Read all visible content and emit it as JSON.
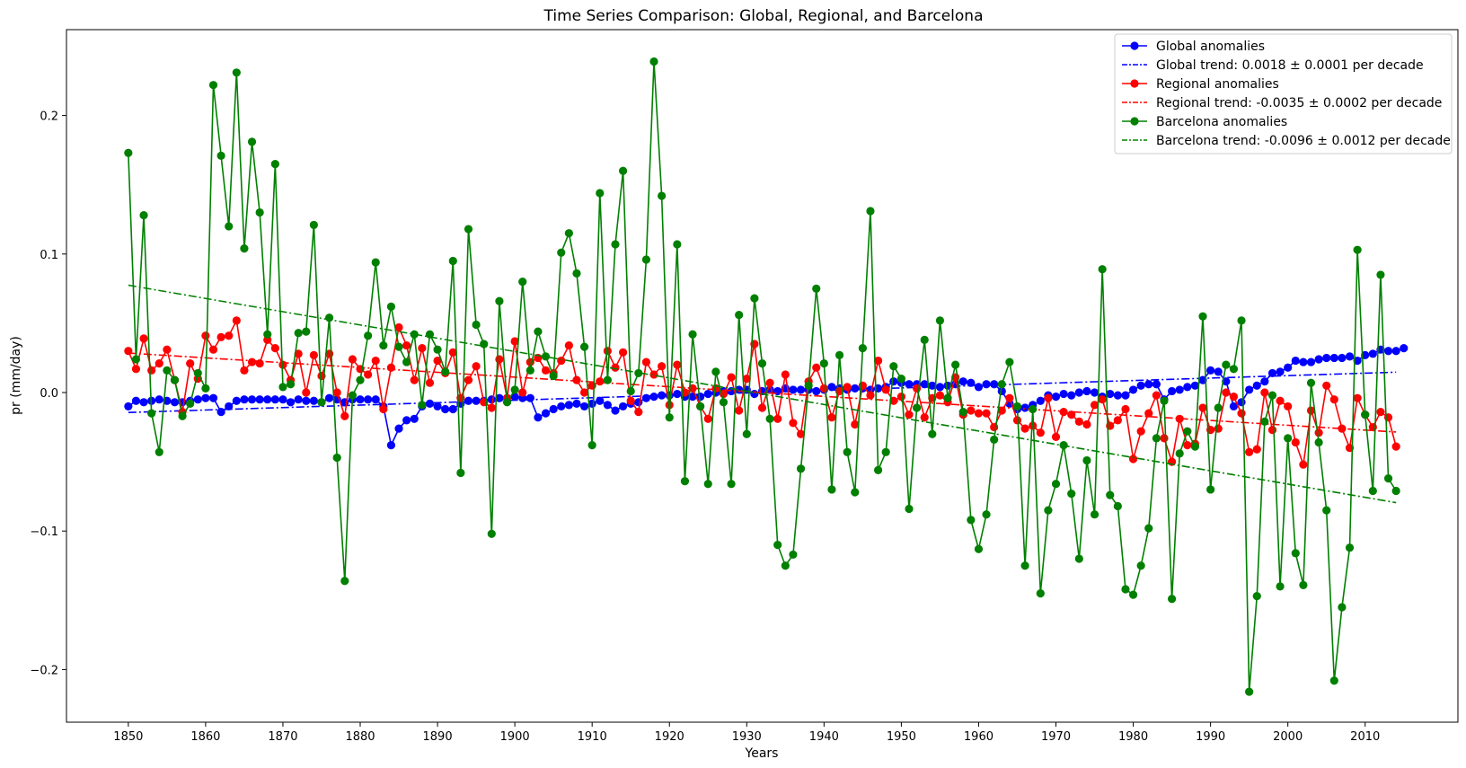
{
  "chart_data": {
    "type": "line",
    "title": "Time Series Comparison: Global, Regional, and Barcelona",
    "xlabel": "Years",
    "ylabel": "pr (mm/day)",
    "xlim": [
      1842,
      2022
    ],
    "ylim": [
      -0.238,
      0.262
    ],
    "xticks": [
      1850,
      1860,
      1870,
      1880,
      1890,
      1900,
      1910,
      1920,
      1930,
      1940,
      1950,
      1960,
      1970,
      1980,
      1990,
      2000,
      2010
    ],
    "yticks": [
      -0.2,
      -0.1,
      0.0,
      0.1,
      0.2
    ],
    "ytick_labels": [
      "−0.2",
      "−0.1",
      "0.0",
      "0.1",
      "0.2"
    ],
    "grid": false,
    "legend_position": "top-right",
    "x_start": 1850,
    "x_end": 2014,
    "series": [
      {
        "name": "Global anomalies",
        "color": "#0000ff",
        "kind": "anomalies",
        "values": [
          -0.01,
          -0.006,
          -0.007,
          -0.006,
          -0.005,
          -0.006,
          -0.007,
          -0.007,
          -0.006,
          -0.005,
          -0.004,
          -0.004,
          -0.014,
          -0.01,
          -0.006,
          -0.005,
          -0.005,
          -0.005,
          -0.005,
          -0.005,
          -0.005,
          -0.007,
          -0.005,
          -0.006,
          -0.006,
          -0.007,
          -0.004,
          -0.005,
          -0.007,
          -0.005,
          -0.005,
          -0.005,
          -0.005,
          -0.01,
          -0.038,
          -0.026,
          -0.02,
          -0.019,
          -0.01,
          -0.008,
          -0.01,
          -0.012,
          -0.012,
          -0.008,
          -0.006,
          -0.006,
          -0.006,
          -0.005,
          -0.004,
          -0.004,
          -0.003,
          -0.004,
          -0.004,
          -0.018,
          -0.015,
          -0.012,
          -0.01,
          -0.009,
          -0.008,
          -0.01,
          -0.008,
          -0.006,
          -0.009,
          -0.013,
          -0.01,
          -0.008,
          -0.007,
          -0.004,
          -0.003,
          -0.002,
          -0.002,
          -0.001,
          -0.003,
          -0.003,
          -0.003,
          -0.001,
          0.0,
          0.001,
          0.001,
          0.002,
          0.002,
          -0.001,
          0.001,
          0.002,
          0.001,
          0.003,
          0.002,
          0.002,
          0.002,
          0.001,
          0.002,
          0.004,
          0.003,
          0.002,
          0.003,
          0.003,
          0.002,
          0.003,
          0.004,
          0.008,
          0.007,
          0.006,
          0.006,
          0.006,
          0.005,
          0.004,
          0.005,
          0.006,
          0.008,
          0.007,
          0.004,
          0.006,
          0.006,
          0.001,
          -0.008,
          -0.012,
          -0.011,
          -0.009,
          -0.006,
          -0.002,
          -0.003,
          -0.001,
          -0.002,
          0.0,
          0.001,
          0.0,
          -0.003,
          -0.001,
          -0.002,
          -0.002,
          0.002,
          0.005,
          0.006,
          0.006,
          -0.005,
          0.001,
          0.002,
          0.004,
          0.005,
          0.009,
          0.016,
          0.015,
          0.008,
          -0.01,
          -0.007,
          0.002,
          0.005,
          0.008,
          0.014,
          0.015,
          0.018,
          0.023,
          0.022,
          0.022,
          0.024,
          0.025,
          0.025,
          0.025,
          0.026,
          0.023,
          0.027,
          0.028,
          0.031,
          0.03,
          0.03,
          0.032
        ]
      },
      {
        "name": "Global trend: 0.0018 ± 0.0001 per decade",
        "color": "#0000ff",
        "kind": "trend",
        "start": -0.0144,
        "end": 0.0147
      },
      {
        "name": "Regional anomalies",
        "color": "#ff0000",
        "kind": "anomalies",
        "values": [
          0.03,
          0.017,
          0.039,
          0.016,
          0.021,
          0.031,
          0.009,
          -0.014,
          0.021,
          0.01,
          0.041,
          0.031,
          0.04,
          0.041,
          0.052,
          0.016,
          0.022,
          0.021,
          0.038,
          0.032,
          0.02,
          0.009,
          0.028,
          0.0,
          0.027,
          0.012,
          0.028,
          0.0,
          -0.017,
          0.024,
          0.017,
          0.013,
          0.023,
          -0.012,
          0.018,
          0.047,
          0.034,
          0.009,
          0.032,
          0.007,
          0.023,
          0.014,
          0.029,
          -0.004,
          0.009,
          0.019,
          -0.007,
          -0.011,
          0.024,
          -0.004,
          0.037,
          0.0,
          0.022,
          0.025,
          0.016,
          0.014,
          0.023,
          0.034,
          0.009,
          0.0,
          0.005,
          0.008,
          0.03,
          0.018,
          0.029,
          -0.006,
          -0.014,
          0.022,
          0.013,
          0.019,
          -0.009,
          0.02,
          0.0,
          0.003,
          -0.01,
          -0.019,
          0.003,
          -0.001,
          0.011,
          -0.013,
          0.01,
          0.035,
          -0.011,
          0.007,
          -0.019,
          0.013,
          -0.022,
          -0.03,
          0.008,
          0.018,
          0.003,
          -0.018,
          0.001,
          0.004,
          -0.023,
          0.005,
          -0.002,
          0.023,
          0.002,
          -0.006,
          -0.003,
          -0.016,
          0.003,
          -0.018,
          -0.004,
          -0.002,
          -0.007,
          0.011,
          -0.016,
          -0.013,
          -0.015,
          -0.015,
          -0.025,
          -0.013,
          -0.004,
          -0.02,
          -0.026,
          -0.024,
          -0.029,
          -0.004,
          -0.032,
          -0.014,
          -0.016,
          -0.021,
          -0.023,
          -0.009,
          -0.005,
          -0.024,
          -0.02,
          -0.012,
          -0.048,
          -0.028,
          -0.015,
          -0.002,
          -0.033,
          -0.05,
          -0.019,
          -0.038,
          -0.037,
          -0.011,
          -0.027,
          -0.026,
          0.0,
          -0.003,
          -0.015,
          -0.043,
          -0.041,
          0.0,
          -0.027,
          -0.006,
          -0.01,
          -0.036,
          -0.052,
          -0.013,
          -0.029,
          0.005,
          -0.005,
          -0.026,
          -0.04,
          -0.004,
          -0.016,
          -0.025,
          -0.014,
          -0.018,
          -0.039
        ]
      },
      {
        "name": "Regional trend: -0.0035 ± 0.0002 per decade",
        "color": "#ff0000",
        "kind": "trend",
        "start": 0.0285,
        "end": -0.0285
      },
      {
        "name": "Barcelona anomalies",
        "color": "#008000",
        "kind": "anomalies",
        "values": [
          0.173,
          0.024,
          0.128,
          -0.015,
          -0.043,
          0.016,
          0.009,
          -0.017,
          -0.008,
          0.014,
          0.003,
          0.222,
          0.171,
          0.12,
          0.231,
          0.104,
          0.181,
          0.13,
          0.042,
          0.165,
          0.004,
          0.006,
          0.043,
          0.044,
          0.121,
          -0.007,
          0.054,
          -0.047,
          -0.136,
          -0.002,
          0.009,
          0.041,
          0.094,
          0.034,
          0.062,
          0.033,
          0.022,
          0.042,
          -0.009,
          0.042,
          0.031,
          0.015,
          0.095,
          -0.058,
          0.118,
          0.049,
          0.035,
          -0.102,
          0.066,
          -0.007,
          0.002,
          0.08,
          0.016,
          0.044,
          0.026,
          0.012,
          0.101,
          0.115,
          0.086,
          0.033,
          -0.038,
          0.144,
          0.009,
          0.107,
          0.16,
          0.001,
          0.014,
          0.096,
          0.239,
          0.142,
          -0.018,
          0.107,
          -0.064,
          0.042,
          -0.01,
          -0.066,
          0.015,
          -0.007,
          -0.066,
          0.056,
          -0.03,
          0.068,
          0.021,
          -0.019,
          -0.11,
          -0.125,
          -0.117,
          -0.055,
          0.005,
          0.075,
          0.021,
          -0.07,
          0.027,
          -0.043,
          -0.072,
          0.032,
          0.131,
          -0.056,
          -0.043,
          0.019,
          0.01,
          -0.084,
          -0.011,
          0.038,
          -0.03,
          0.052,
          -0.004,
          0.02,
          -0.014,
          -0.092,
          -0.113,
          -0.088,
          -0.034,
          0.006,
          0.022,
          -0.01,
          -0.125,
          -0.012,
          -0.145,
          -0.085,
          -0.066,
          -0.038,
          -0.073,
          -0.12,
          -0.049,
          -0.088,
          0.089,
          -0.074,
          -0.082,
          -0.142,
          -0.146,
          -0.125,
          -0.098,
          -0.033,
          -0.006,
          -0.149,
          -0.044,
          -0.028,
          -0.039,
          0.055,
          -0.07,
          -0.011,
          0.02,
          0.017,
          0.052,
          -0.216,
          -0.147,
          -0.021,
          -0.002,
          -0.14,
          -0.033,
          -0.116,
          -0.139,
          0.007,
          -0.036,
          -0.085,
          -0.208,
          -0.155,
          -0.112,
          0.103,
          -0.016,
          -0.071,
          0.085,
          -0.062,
          -0.071
        ]
      },
      {
        "name": "Barcelona trend: -0.0096 ± 0.0012 per decade",
        "color": "#008000",
        "kind": "trend",
        "start": 0.0775,
        "end": -0.0795
      }
    ]
  }
}
